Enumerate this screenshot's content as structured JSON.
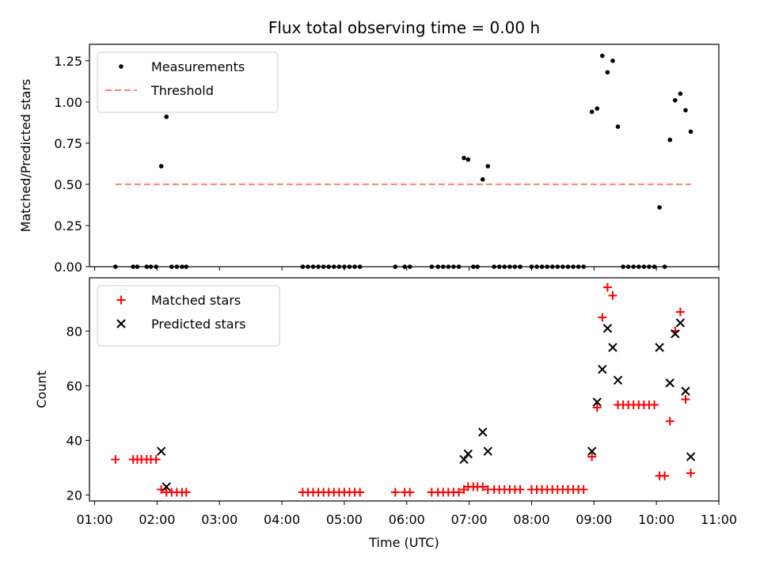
{
  "title": "Flux total observing time = 0.00 h",
  "chart_data": [
    {
      "type": "scatter",
      "panel": "top",
      "xlabel": "",
      "ylabel": "Matched/Predicted stars",
      "ylim": [
        0,
        1.35
      ],
      "yticks": [
        "0.00",
        "0.25",
        "0.50",
        "0.75",
        "1.00",
        "1.25"
      ],
      "legend_position": "top-left",
      "series": [
        {
          "name": "Measurements",
          "marker": "dot",
          "color": "#000000",
          "points": [
            [
              "01:20",
              0
            ],
            [
              "01:37",
              0
            ],
            [
              "01:41",
              0
            ],
            [
              "01:50",
              0
            ],
            [
              "01:54",
              0
            ],
            [
              "01:59",
              0
            ],
            [
              "02:04",
              0.61
            ],
            [
              "02:09",
              0.91
            ],
            [
              "02:14",
              0
            ],
            [
              "02:19",
              0
            ],
            [
              "02:24",
              0
            ],
            [
              "02:28",
              0
            ],
            [
              "04:20",
              0
            ],
            [
              "04:25",
              0
            ],
            [
              "04:30",
              0
            ],
            [
              "04:35",
              0
            ],
            [
              "04:40",
              0
            ],
            [
              "04:45",
              0
            ],
            [
              "04:50",
              0
            ],
            [
              "04:55",
              0
            ],
            [
              "05:00",
              0
            ],
            [
              "05:05",
              0
            ],
            [
              "05:10",
              0
            ],
            [
              "05:15",
              0
            ],
            [
              "05:49",
              0
            ],
            [
              "05:58",
              0
            ],
            [
              "06:03",
              0
            ],
            [
              "06:24",
              0
            ],
            [
              "06:30",
              0
            ],
            [
              "06:35",
              0
            ],
            [
              "06:40",
              0
            ],
            [
              "06:45",
              0
            ],
            [
              "06:50",
              0
            ],
            [
              "06:55",
              0.66
            ],
            [
              "06:59",
              0.65
            ],
            [
              "07:04",
              0
            ],
            [
              "07:08",
              0
            ],
            [
              "07:13",
              0.53
            ],
            [
              "07:18",
              0.61
            ],
            [
              "07:24",
              0
            ],
            [
              "07:29",
              0
            ],
            [
              "07:34",
              0
            ],
            [
              "07:39",
              0
            ],
            [
              "07:44",
              0
            ],
            [
              "07:49",
              0
            ],
            [
              "08:00",
              0
            ],
            [
              "08:05",
              0
            ],
            [
              "08:10",
              0
            ],
            [
              "08:15",
              0
            ],
            [
              "08:20",
              0
            ],
            [
              "08:25",
              0
            ],
            [
              "08:30",
              0
            ],
            [
              "08:35",
              0
            ],
            [
              "08:40",
              0
            ],
            [
              "08:45",
              0
            ],
            [
              "08:50",
              0
            ],
            [
              "08:58",
              0.94
            ],
            [
              "09:03",
              0.96
            ],
            [
              "09:08",
              1.28
            ],
            [
              "09:13",
              1.18
            ],
            [
              "09:18",
              1.25
            ],
            [
              "09:23",
              0.85
            ],
            [
              "09:28",
              0
            ],
            [
              "09:33",
              0
            ],
            [
              "09:38",
              0
            ],
            [
              "09:43",
              0
            ],
            [
              "09:48",
              0
            ],
            [
              "09:53",
              0
            ],
            [
              "09:58",
              0
            ],
            [
              "10:03",
              0.36
            ],
            [
              "10:08",
              0
            ],
            [
              "10:13",
              0.77
            ],
            [
              "10:18",
              1.01
            ],
            [
              "10:23",
              1.05
            ],
            [
              "10:28",
              0.95
            ],
            [
              "10:33",
              0.82
            ]
          ]
        },
        {
          "name": "Threshold",
          "style": "dashed-line",
          "color": "#ff8080",
          "points": [
            [
              "01:20",
              0.5
            ],
            [
              "10:33",
              0.5
            ]
          ]
        }
      ]
    },
    {
      "type": "scatter",
      "panel": "bottom",
      "xlabel": "Time (UTC)",
      "ylabel": "Count",
      "ylim": [
        17.8,
        99.5
      ],
      "yticks": [
        "20",
        "40",
        "60",
        "80"
      ],
      "xlim": [
        "00:55",
        "11:00"
      ],
      "xticks": [
        "01:00",
        "02:00",
        "03:00",
        "04:00",
        "05:00",
        "06:00",
        "07:00",
        "08:00",
        "09:00",
        "10:00",
        "11:00"
      ],
      "legend_position": "top-left",
      "series": [
        {
          "name": "Matched stars",
          "marker": "plus",
          "color": "#ff0000",
          "points": [
            [
              "01:20",
              33
            ],
            [
              "01:37",
              33
            ],
            [
              "01:41",
              33
            ],
            [
              "01:45",
              33
            ],
            [
              "01:50",
              33
            ],
            [
              "01:54",
              33
            ],
            [
              "01:59",
              33
            ],
            [
              "02:04",
              22
            ],
            [
              "02:09",
              21
            ],
            [
              "02:14",
              21
            ],
            [
              "02:19",
              21
            ],
            [
              "02:24",
              21
            ],
            [
              "02:28",
              21
            ],
            [
              "04:20",
              21
            ],
            [
              "04:25",
              21
            ],
            [
              "04:30",
              21
            ],
            [
              "04:35",
              21
            ],
            [
              "04:40",
              21
            ],
            [
              "04:45",
              21
            ],
            [
              "04:50",
              21
            ],
            [
              "04:55",
              21
            ],
            [
              "05:00",
              21
            ],
            [
              "05:05",
              21
            ],
            [
              "05:10",
              21
            ],
            [
              "05:15",
              21
            ],
            [
              "05:49",
              21
            ],
            [
              "05:58",
              21
            ],
            [
              "06:03",
              21
            ],
            [
              "06:24",
              21
            ],
            [
              "06:30",
              21
            ],
            [
              "06:35",
              21
            ],
            [
              "06:40",
              21
            ],
            [
              "06:45",
              21
            ],
            [
              "06:50",
              21
            ],
            [
              "06:55",
              22
            ],
            [
              "06:59",
              23
            ],
            [
              "07:04",
              23
            ],
            [
              "07:08",
              23
            ],
            [
              "07:13",
              23
            ],
            [
              "07:18",
              22
            ],
            [
              "07:24",
              22
            ],
            [
              "07:29",
              22
            ],
            [
              "07:34",
              22
            ],
            [
              "07:39",
              22
            ],
            [
              "07:44",
              22
            ],
            [
              "07:49",
              22
            ],
            [
              "08:00",
              22
            ],
            [
              "08:05",
              22
            ],
            [
              "08:10",
              22
            ],
            [
              "08:15",
              22
            ],
            [
              "08:20",
              22
            ],
            [
              "08:25",
              22
            ],
            [
              "08:30",
              22
            ],
            [
              "08:35",
              22
            ],
            [
              "08:40",
              22
            ],
            [
              "08:45",
              22
            ],
            [
              "08:50",
              22
            ],
            [
              "08:58",
              34
            ],
            [
              "09:03",
              52
            ],
            [
              "09:08",
              85
            ],
            [
              "09:13",
              96
            ],
            [
              "09:18",
              93
            ],
            [
              "09:23",
              53
            ],
            [
              "09:28",
              53
            ],
            [
              "09:33",
              53
            ],
            [
              "09:38",
              53
            ],
            [
              "09:43",
              53
            ],
            [
              "09:48",
              53
            ],
            [
              "09:53",
              53
            ],
            [
              "09:58",
              53
            ],
            [
              "10:03",
              27
            ],
            [
              "10:08",
              27
            ],
            [
              "10:13",
              47
            ],
            [
              "10:18",
              80
            ],
            [
              "10:23",
              87
            ],
            [
              "10:28",
              55
            ],
            [
              "10:33",
              28
            ]
          ]
        },
        {
          "name": "Predicted stars",
          "marker": "x",
          "color": "#000000",
          "points": [
            [
              "02:04",
              36
            ],
            [
              "02:09",
              23
            ],
            [
              "06:55",
              33
            ],
            [
              "06:59",
              35
            ],
            [
              "07:13",
              43
            ],
            [
              "07:18",
              36
            ],
            [
              "08:58",
              36
            ],
            [
              "09:03",
              54
            ],
            [
              "09:08",
              66
            ],
            [
              "09:13",
              81
            ],
            [
              "09:18",
              74
            ],
            [
              "09:23",
              62
            ],
            [
              "10:03",
              74
            ],
            [
              "10:13",
              61
            ],
            [
              "10:18",
              79
            ],
            [
              "10:23",
              83
            ],
            [
              "10:28",
              58
            ],
            [
              "10:33",
              34
            ]
          ]
        }
      ]
    }
  ]
}
